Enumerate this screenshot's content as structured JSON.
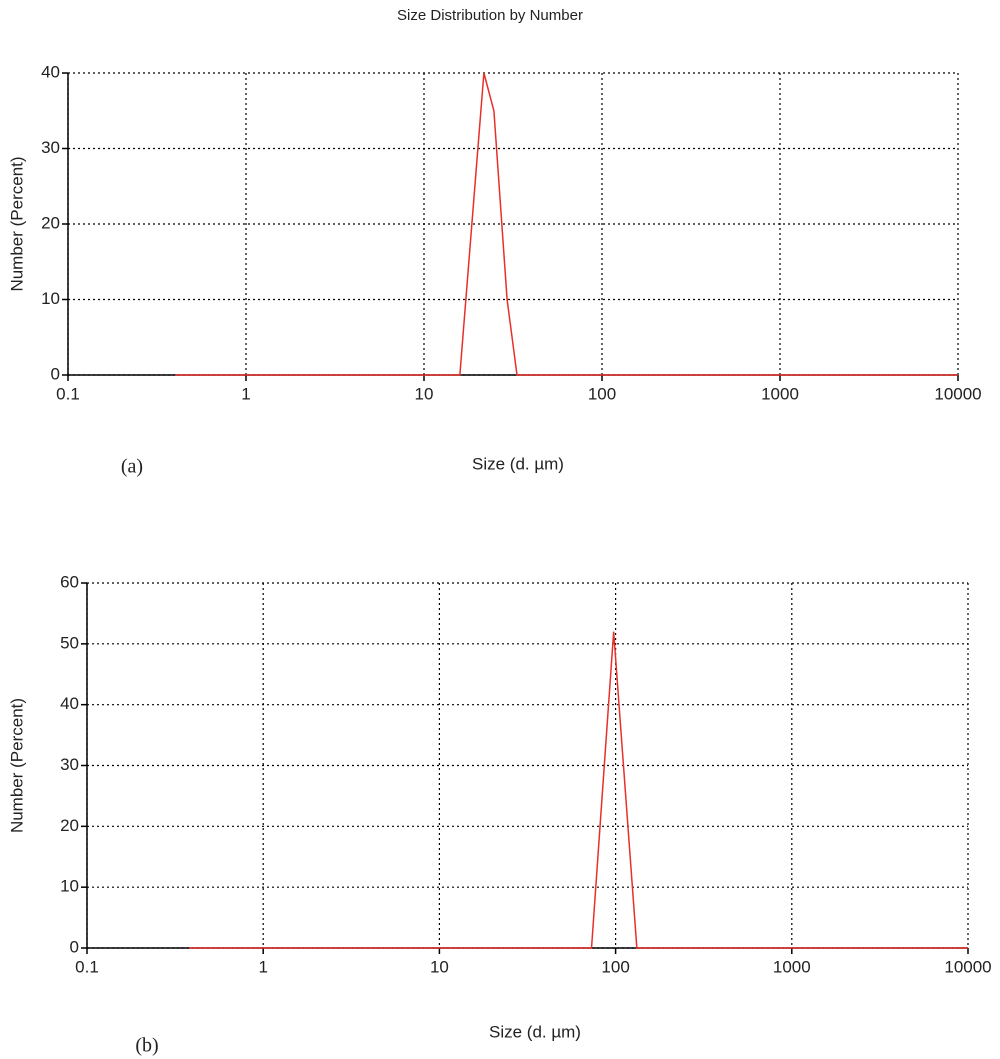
{
  "chart_data": [
    {
      "type": "line",
      "title": "Size Distribution by Number",
      "panel_label": "(a)",
      "x_label": "Size (d. µm)",
      "y_label": "Number (Percent)",
      "x": [
        0.4,
        15.9,
        21.7,
        24.7,
        29.3,
        33.3,
        10000
      ],
      "values": [
        0,
        0,
        40,
        35,
        10,
        0,
        0
      ],
      "color": "#e8302a",
      "log_x": true,
      "grid": true,
      "xlim": [
        0.1,
        10000
      ],
      "xticks": [
        0.1,
        1,
        10,
        100,
        1000,
        10000
      ],
      "ylim": [
        0,
        40
      ],
      "yticks": [
        0,
        10,
        20,
        30,
        40
      ]
    },
    {
      "type": "line",
      "panel_label": "(b)",
      "x_label": "Size (d. µm)",
      "y_label": "Number (Percent)",
      "x": [
        0.38,
        73,
        97.5,
        132,
        10000
      ],
      "values": [
        0,
        0,
        52,
        0,
        0
      ],
      "color": "#e8302a",
      "log_x": true,
      "grid": true,
      "xlim": [
        0.1,
        10000
      ],
      "xticks": [
        0.1,
        1,
        10,
        100,
        1000,
        10000
      ],
      "ylim": [
        0,
        60
      ],
      "yticks": [
        0,
        10,
        20,
        30,
        40,
        50,
        60
      ]
    }
  ]
}
